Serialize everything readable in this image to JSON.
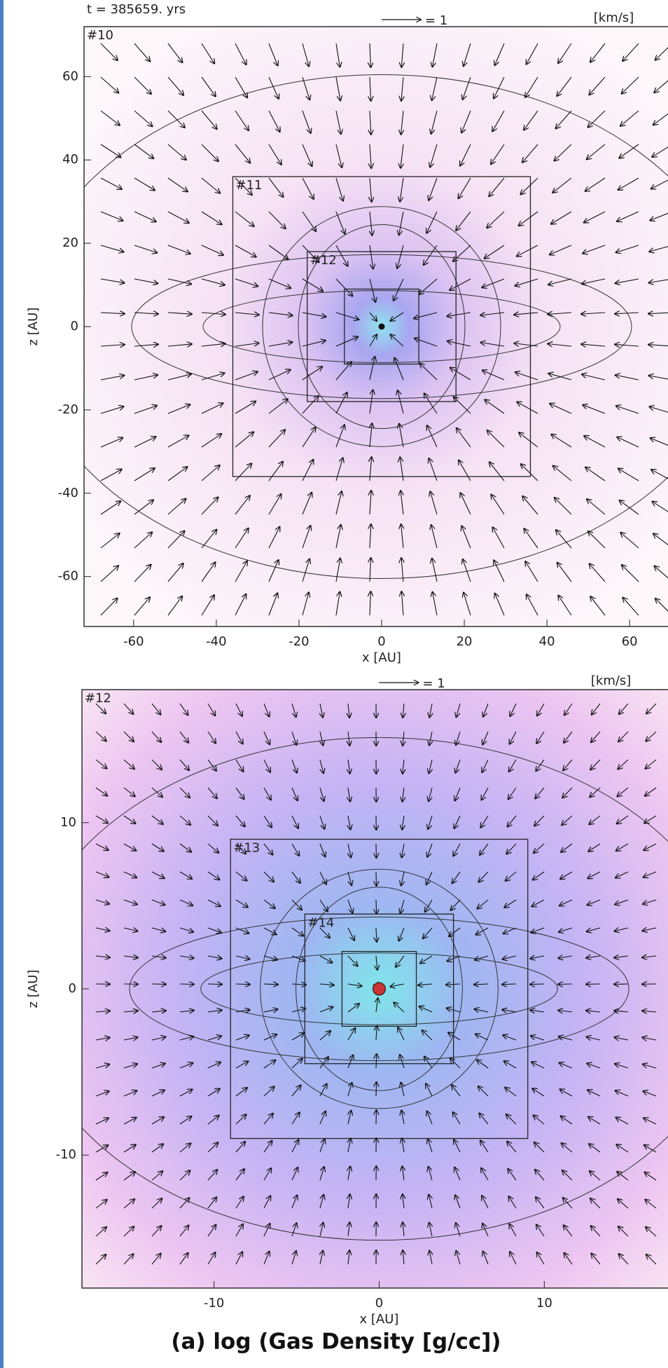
{
  "figure_caption": "(a)   log (Gas Density [g/cc])",
  "chart_data": [
    {
      "type": "vector-field",
      "annotation": "t = 385659. yrs",
      "vector_key": "= 1",
      "unit_label": "[km/s]",
      "x_label": "x [AU]",
      "y_label": "z [AU]",
      "xlim": [
        -72,
        72
      ],
      "ylim": [
        -72,
        72
      ],
      "xticks": [
        -60,
        -40,
        -20,
        0,
        20,
        40,
        60
      ],
      "yticks": [
        -60,
        -40,
        -20,
        0,
        20,
        40,
        60
      ],
      "boxes": [
        {
          "label": "#10",
          "xlim": [
            -72,
            72
          ],
          "ylim": [
            -72,
            72
          ]
        },
        {
          "label": "#11",
          "xlim": [
            -36,
            36
          ],
          "ylim": [
            -36,
            36
          ]
        },
        {
          "label": "#12",
          "xlim": [
            -18,
            18
          ],
          "ylim": [
            -18,
            18
          ]
        },
        {
          "label": null,
          "xlim": [
            -9,
            9
          ],
          "ylim": [
            -9,
            9
          ]
        }
      ]
    },
    {
      "type": "vector-field",
      "vector_key": "= 1",
      "unit_label": "[km/s]",
      "x_label": "x [AU]",
      "y_label": "z [AU]",
      "xlim": [
        -18,
        18
      ],
      "ylim": [
        -18,
        18
      ],
      "xticks": [
        -10,
        0,
        10
      ],
      "yticks": [
        -10,
        0,
        10
      ],
      "boxes": [
        {
          "label": "#12",
          "xlim": [
            -18,
            18
          ],
          "ylim": [
            -18,
            18
          ]
        },
        {
          "label": "#13",
          "xlim": [
            -9,
            9
          ],
          "ylim": [
            -9,
            9
          ]
        },
        {
          "label": "#14",
          "xlim": [
            -4.5,
            4.5
          ],
          "ylim": [
            -4.5,
            4.5
          ]
        },
        {
          "label": null,
          "xlim": [
            -2.25,
            2.25
          ],
          "ylim": [
            -2.25,
            2.25
          ]
        }
      ]
    }
  ]
}
